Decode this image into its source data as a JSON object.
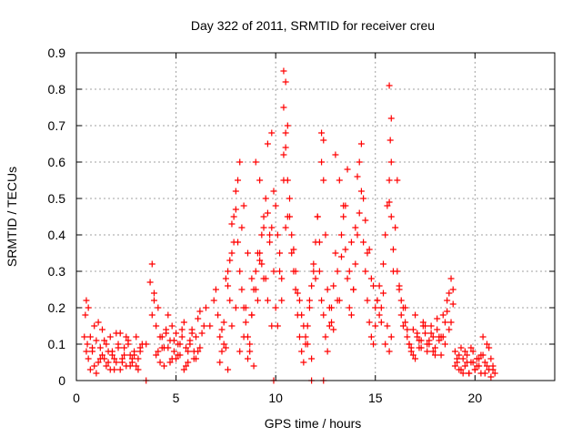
{
  "chart_data": {
    "type": "scatter",
    "title": "Day 322 of 2011, SRMTID for receiver creu",
    "xlabel": "GPS time / hours",
    "ylabel": "SRMTID / TECUs",
    "xlim": [
      0,
      24
    ],
    "ylim": [
      0,
      0.9
    ],
    "xticks": [
      0,
      5,
      10,
      15,
      20
    ],
    "xtick_labels": [
      "0",
      "5",
      "10",
      "15",
      "20"
    ],
    "yticks": [
      0,
      0.1,
      0.2,
      0.3,
      0.4,
      0.5,
      0.6,
      0.7,
      0.8,
      0.9
    ],
    "ytick_labels": [
      "0",
      "0.1",
      "0.2",
      "0.3",
      "0.4",
      "0.5",
      "0.6",
      "0.7",
      "0.8",
      "0.9"
    ],
    "grid": true,
    "marker": "+",
    "series_color": "#ff0000",
    "series": [
      {
        "x": [
          0.4,
          0.45,
          0.5,
          0.55,
          0.6,
          0.7,
          0.8,
          0.9,
          1.0,
          1.1,
          1.2,
          1.3,
          1.4,
          1.5,
          1.6,
          1.7,
          1.8,
          1.9,
          2.0,
          2.1,
          2.2,
          2.3,
          2.4,
          2.5,
          2.6,
          2.7,
          2.8,
          2.9,
          3.0,
          3.1,
          3.2,
          3.3,
          0.5,
          0.7,
          0.9,
          1.1,
          1.3,
          1.5,
          1.7,
          1.9,
          2.1,
          2.3,
          2.5,
          2.7,
          2.9,
          3.1,
          0.6,
          0.8,
          1.0,
          1.2,
          1.4,
          1.6,
          1.8,
          2.0,
          2.2,
          2.4,
          2.6,
          2.8,
          3.0,
          3.2,
          3.5,
          3.7,
          3.8,
          3.9,
          4.0,
          4.1,
          4.2,
          4.3,
          4.4,
          4.5,
          4.6,
          4.7,
          4.8,
          4.9,
          5.0,
          5.1,
          5.2,
          5.3,
          5.4,
          5.5,
          5.6,
          5.7,
          5.8,
          5.9,
          6.0,
          6.1,
          6.2,
          6.3,
          6.4,
          3.8,
          4.0,
          4.2,
          4.4,
          4.6,
          4.8,
          5.0,
          5.2,
          5.4,
          5.6,
          5.8,
          6.0,
          6.2,
          3.9,
          4.1,
          4.3,
          4.5,
          4.7,
          4.9,
          5.1,
          5.3,
          5.5,
          5.7,
          5.9,
          6.1,
          6.5,
          6.7,
          6.9,
          7.0,
          7.1,
          7.2,
          7.3,
          7.4,
          7.5,
          7.6,
          7.7,
          7.8,
          7.9,
          8.0,
          8.1,
          8.2,
          8.3,
          8.4,
          8.5,
          8.6,
          8.7,
          8.8,
          8.9,
          9.0,
          9.1,
          9.2,
          9.3,
          9.4,
          9.5,
          9.6,
          9.7,
          9.8,
          9.9,
          7.2,
          7.4,
          7.6,
          7.8,
          8.0,
          8.2,
          8.4,
          8.6,
          8.8,
          9.0,
          9.2,
          9.4,
          9.6,
          9.8,
          7.3,
          7.5,
          7.7,
          7.9,
          8.1,
          8.3,
          8.5,
          8.7,
          8.9,
          9.1,
          9.3,
          9.5,
          9.7,
          9.9,
          7.6,
          7.8,
          8.0,
          8.2,
          8.4,
          8.6,
          8.8,
          9.0,
          9.2,
          9.4,
          9.6,
          9.8,
          10.0,
          10.1,
          10.2,
          10.3,
          10.4,
          10.5,
          10.6,
          10.7,
          10.8,
          10.9,
          11.0,
          11.1,
          11.2,
          11.3,
          11.4,
          11.5,
          11.6,
          11.7,
          11.8,
          11.9,
          12.0,
          12.1,
          12.2,
          12.3,
          12.4,
          12.5,
          12.6,
          12.7,
          12.8,
          12.9,
          10.0,
          10.2,
          10.4,
          10.6,
          10.8,
          11.0,
          11.2,
          11.4,
          11.6,
          11.8,
          12.0,
          12.2,
          12.4,
          12.6,
          12.8,
          10.1,
          10.3,
          10.5,
          10.7,
          10.9,
          11.1,
          11.3,
          11.5,
          11.7,
          11.9,
          12.1,
          12.3,
          12.5,
          12.7,
          12.9,
          10.4,
          10.5,
          10.6,
          10.5,
          10.4,
          12.3,
          12.4,
          13.0,
          13.1,
          13.2,
          13.3,
          13.4,
          13.5,
          13.6,
          13.7,
          13.8,
          13.9,
          14.0,
          14.1,
          14.2,
          14.3,
          14.4,
          14.5,
          14.6,
          14.7,
          14.8,
          14.9,
          15.0,
          15.1,
          15.2,
          15.3,
          15.4,
          15.5,
          15.6,
          15.7,
          15.8,
          15.9,
          13.0,
          13.2,
          13.4,
          13.6,
          13.8,
          14.0,
          14.2,
          14.4,
          14.6,
          14.8,
          15.0,
          15.2,
          15.4,
          15.6,
          15.8,
          13.1,
          13.3,
          13.5,
          13.7,
          13.9,
          14.1,
          14.3,
          14.5,
          14.7,
          14.9,
          15.1,
          15.3,
          15.5,
          15.7,
          15.9,
          15.7,
          15.8,
          15.75,
          15.8,
          15.7,
          16.0,
          16.1,
          16.2,
          16.3,
          16.4,
          16.5,
          16.6,
          16.7,
          16.8,
          16.9,
          17.0,
          17.1,
          17.2,
          17.3,
          17.4,
          17.5,
          17.6,
          17.7,
          17.8,
          17.9,
          18.0,
          18.1,
          18.2,
          18.3,
          18.4,
          18.5,
          18.6,
          18.7,
          18.8,
          18.9,
          16.1,
          16.3,
          16.5,
          16.7,
          16.9,
          17.1,
          17.3,
          17.5,
          17.7,
          17.9,
          18.1,
          18.3,
          18.5,
          18.7,
          18.9,
          16.2,
          16.4,
          16.6,
          16.8,
          17.0,
          17.2,
          17.4,
          17.6,
          17.8,
          18.0,
          18.2,
          18.4,
          18.6,
          18.8,
          19.0,
          19.1,
          19.2,
          19.3,
          19.4,
          19.5,
          19.6,
          19.7,
          19.8,
          19.9,
          20.0,
          20.1,
          20.2,
          20.3,
          20.4,
          20.5,
          20.6,
          20.7,
          20.8,
          20.9,
          21.0,
          19.0,
          19.2,
          19.4,
          19.6,
          19.8,
          20.0,
          20.2,
          20.4,
          20.6,
          20.8,
          19.1,
          19.3,
          19.5,
          19.7,
          19.9,
          20.1,
          20.3,
          20.5,
          20.7,
          20.9,
          3.5,
          9.9,
          11.8,
          12.4
        ],
        "y": [
          0.12,
          0.18,
          0.22,
          0.1,
          0.06,
          0.03,
          0.08,
          0.15,
          0.11,
          0.05,
          0.09,
          0.14,
          0.06,
          0.04,
          0.08,
          0.12,
          0.07,
          0.03,
          0.05,
          0.1,
          0.13,
          0.06,
          0.09,
          0.04,
          0.11,
          0.07,
          0.05,
          0.08,
          0.12,
          0.06,
          0.09,
          0.1,
          0.08,
          0.12,
          0.04,
          0.16,
          0.07,
          0.1,
          0.03,
          0.06,
          0.09,
          0.05,
          0.12,
          0.04,
          0.07,
          0.03,
          0.2,
          0.09,
          0.02,
          0.06,
          0.11,
          0.05,
          0.08,
          0.13,
          0.03,
          0.07,
          0.1,
          0.06,
          0.04,
          0.08,
          0.1,
          0.27,
          0.32,
          0.22,
          0.15,
          0.08,
          0.05,
          0.12,
          0.09,
          0.14,
          0.18,
          0.11,
          0.06,
          0.08,
          0.13,
          0.1,
          0.07,
          0.12,
          0.16,
          0.09,
          0.05,
          0.11,
          0.14,
          0.08,
          0.12,
          0.17,
          0.19,
          0.13,
          0.15,
          0.18,
          0.07,
          0.12,
          0.04,
          0.09,
          0.15,
          0.06,
          0.1,
          0.03,
          0.08,
          0.13,
          0.06,
          0.09,
          0.24,
          0.2,
          0.09,
          0.13,
          0.05,
          0.11,
          0.07,
          0.14,
          0.04,
          0.1,
          0.06,
          0.08,
          0.2,
          0.15,
          0.22,
          0.25,
          0.18,
          0.12,
          0.08,
          0.16,
          0.28,
          0.3,
          0.22,
          0.35,
          0.45,
          0.47,
          0.38,
          0.3,
          0.25,
          0.2,
          0.16,
          0.12,
          0.08,
          0.18,
          0.25,
          0.3,
          0.35,
          0.33,
          0.4,
          0.45,
          0.5,
          0.46,
          0.38,
          0.42,
          0.3,
          0.05,
          0.1,
          0.03,
          0.15,
          0.2,
          0.08,
          0.12,
          0.06,
          0.18,
          0.25,
          0.35,
          0.28,
          0.22,
          0.15,
          0.14,
          0.09,
          0.33,
          0.38,
          0.55,
          0.42,
          0.2,
          0.1,
          0.04,
          0.22,
          0.32,
          0.28,
          0.4,
          0.52,
          0.26,
          0.43,
          0.52,
          0.6,
          0.48,
          0.35,
          0.28,
          0.6,
          0.55,
          0.42,
          0.65,
          0.68,
          0.48,
          0.4,
          0.3,
          0.22,
          0.62,
          0.68,
          0.55,
          0.45,
          0.35,
          0.3,
          0.25,
          0.18,
          0.12,
          0.08,
          0.05,
          0.1,
          0.15,
          0.2,
          0.26,
          0.32,
          0.38,
          0.45,
          0.3,
          0.22,
          0.18,
          0.12,
          0.08,
          0.15,
          0.2,
          0.26,
          0.2,
          0.35,
          0.55,
          0.45,
          0.4,
          0.3,
          0.22,
          0.15,
          0.1,
          0.06,
          0.28,
          0.38,
          0.55,
          0.25,
          0.16,
          0.15,
          0.28,
          0.42,
          0.5,
          0.36,
          0.24,
          0.18,
          0.12,
          0.22,
          0.3,
          0.45,
          0.6,
          0.4,
          0.2,
          0.14,
          0.85,
          0.82,
          0.7,
          0.64,
          0.75,
          0.68,
          0.66,
          0.35,
          0.3,
          0.22,
          0.4,
          0.48,
          0.36,
          0.28,
          0.2,
          0.18,
          0.25,
          0.32,
          0.4,
          0.46,
          0.52,
          0.38,
          0.3,
          0.22,
          0.16,
          0.12,
          0.1,
          0.15,
          0.22,
          0.26,
          0.2,
          0.32,
          0.4,
          0.48,
          0.55,
          0.45,
          0.36,
          0.62,
          0.55,
          0.45,
          0.58,
          0.38,
          0.42,
          0.6,
          0.5,
          0.35,
          0.28,
          0.2,
          0.18,
          0.24,
          0.15,
          0.12,
          0.22,
          0.34,
          0.48,
          0.3,
          0.25,
          0.56,
          0.65,
          0.44,
          0.36,
          0.26,
          0.22,
          0.16,
          0.1,
          0.08,
          0.3,
          0.81,
          0.72,
          0.66,
          0.6,
          0.49,
          0.42,
          0.3,
          0.25,
          0.18,
          0.15,
          0.2,
          0.12,
          0.1,
          0.08,
          0.14,
          0.18,
          0.12,
          0.09,
          0.11,
          0.16,
          0.13,
          0.08,
          0.1,
          0.15,
          0.12,
          0.09,
          0.14,
          0.11,
          0.07,
          0.12,
          0.16,
          0.19,
          0.24,
          0.28,
          0.25,
          0.55,
          0.22,
          0.16,
          0.1,
          0.07,
          0.13,
          0.09,
          0.15,
          0.11,
          0.08,
          0.17,
          0.12,
          0.1,
          0.14,
          0.21,
          0.26,
          0.2,
          0.14,
          0.09,
          0.06,
          0.11,
          0.15,
          0.1,
          0.13,
          0.07,
          0.12,
          0.18,
          0.22,
          0.16,
          0.08,
          0.05,
          0.03,
          0.09,
          0.06,
          0.04,
          0.07,
          0.02,
          0.05,
          0.08,
          0.03,
          0.06,
          0.04,
          0.02,
          0.07,
          0.05,
          0.1,
          0.03,
          0.06,
          0.04,
          0.02,
          0.04,
          0.07,
          0.02,
          0.05,
          0.09,
          0.03,
          0.06,
          0.12,
          0.04,
          0.01,
          0.06,
          0.03,
          0.08,
          0.02,
          0.05,
          0.04,
          0.07,
          0.02,
          0.09,
          0.03,
          0.0,
          0.0,
          0.0,
          0.0
        ]
      }
    ]
  }
}
